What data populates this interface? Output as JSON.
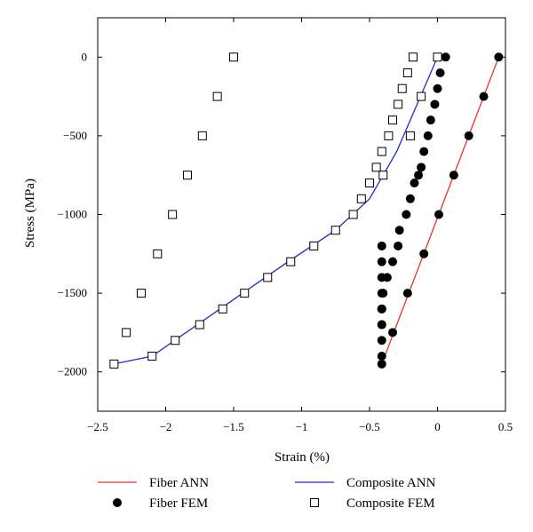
{
  "chart_data": {
    "type": "scatter",
    "xlabel": "Strain (%)",
    "ylabel": "Stress (MPa)",
    "xlim": [
      -2.5,
      0.5
    ],
    "ylim": [
      -2250,
      250
    ],
    "xticks": [
      -2.5,
      -2,
      -1.5,
      -1,
      -0.5,
      0,
      0.5
    ],
    "xtick_labels": [
      "−2.5",
      "−2",
      "−1.5",
      "−1",
      "−0.5",
      "0",
      "0.5"
    ],
    "yticks": [
      0,
      -500,
      -1000,
      -1500,
      -2000
    ],
    "ytick_labels": [
      "0",
      "−500",
      "−1000",
      "−1500",
      "−2000"
    ],
    "legend_placement": "bottom",
    "series": [
      {
        "name": "Fiber ANN",
        "style": "line",
        "color": "#e8322b",
        "x": [
          -0.41,
          0.45
        ],
        "y": [
          -1950,
          0
        ]
      },
      {
        "name": "Composite ANN",
        "style": "line",
        "color": "#1f2bd1",
        "x": [
          -2.38,
          -2.1,
          -1.6,
          -1.1,
          -0.75,
          -0.5,
          -0.3,
          0
        ],
        "y": [
          -1950,
          -1900,
          -1600,
          -1300,
          -1100,
          -900,
          -600,
          0
        ]
      },
      {
        "name": "Fiber FEM",
        "style": "marker-circle",
        "color": "#000000",
        "x": [
          0.06,
          0.02,
          0,
          -0.02,
          -0.05,
          -0.07,
          -0.1,
          -0.12,
          -0.14,
          -0.17,
          -0.2,
          -0.23,
          -0.28,
          -0.29,
          -0.33,
          -0.37,
          -0.4,
          -0.41,
          -0.41,
          -0.41,
          -0.41,
          -0.41,
          -0.41,
          -0.41,
          -0.41,
          -0.41,
          -0.41,
          -0.41,
          0.45,
          0.34,
          0.23,
          0.12,
          0.01,
          -0.1,
          -0.22,
          -0.33
        ],
        "y": [
          0,
          -100,
          -200,
          -300,
          -400,
          -500,
          -600,
          -700,
          -750,
          -800,
          -900,
          -1000,
          -1100,
          -1200,
          -1300,
          -1400,
          -1500,
          -1600,
          -1700,
          -1800,
          -1900,
          -1950,
          -1200,
          -1300,
          -1400,
          -1500,
          -1600,
          -1700,
          0,
          -250,
          -500,
          -750,
          -1000,
          -1250,
          -1500,
          -1750
        ]
      },
      {
        "name": "Composite FEM",
        "style": "marker-square",
        "color": "#000000",
        "x": [
          -1.5,
          -1.62,
          -1.73,
          -1.84,
          -1.95,
          -2.06,
          -2.18,
          -2.29,
          -2.38,
          -2.1,
          -1.93,
          -1.75,
          -1.58,
          -1.42,
          -1.25,
          -1.08,
          -0.91,
          -0.75,
          -0.62,
          -0.56,
          -0.5,
          -0.45,
          -0.41,
          -0.36,
          -0.33,
          -0.29,
          -0.26,
          -0.22,
          -0.18,
          -0.4,
          -0.2,
          -0.12,
          0
        ],
        "y": [
          0,
          -250,
          -500,
          -750,
          -1000,
          -1250,
          -1500,
          -1750,
          -1950,
          -1900,
          -1800,
          -1700,
          -1600,
          -1500,
          -1400,
          -1300,
          -1200,
          -1100,
          -1000,
          -900,
          -800,
          -700,
          -600,
          -500,
          -400,
          -300,
          -200,
          -100,
          0,
          -750,
          -500,
          -250,
          0
        ]
      }
    ]
  }
}
